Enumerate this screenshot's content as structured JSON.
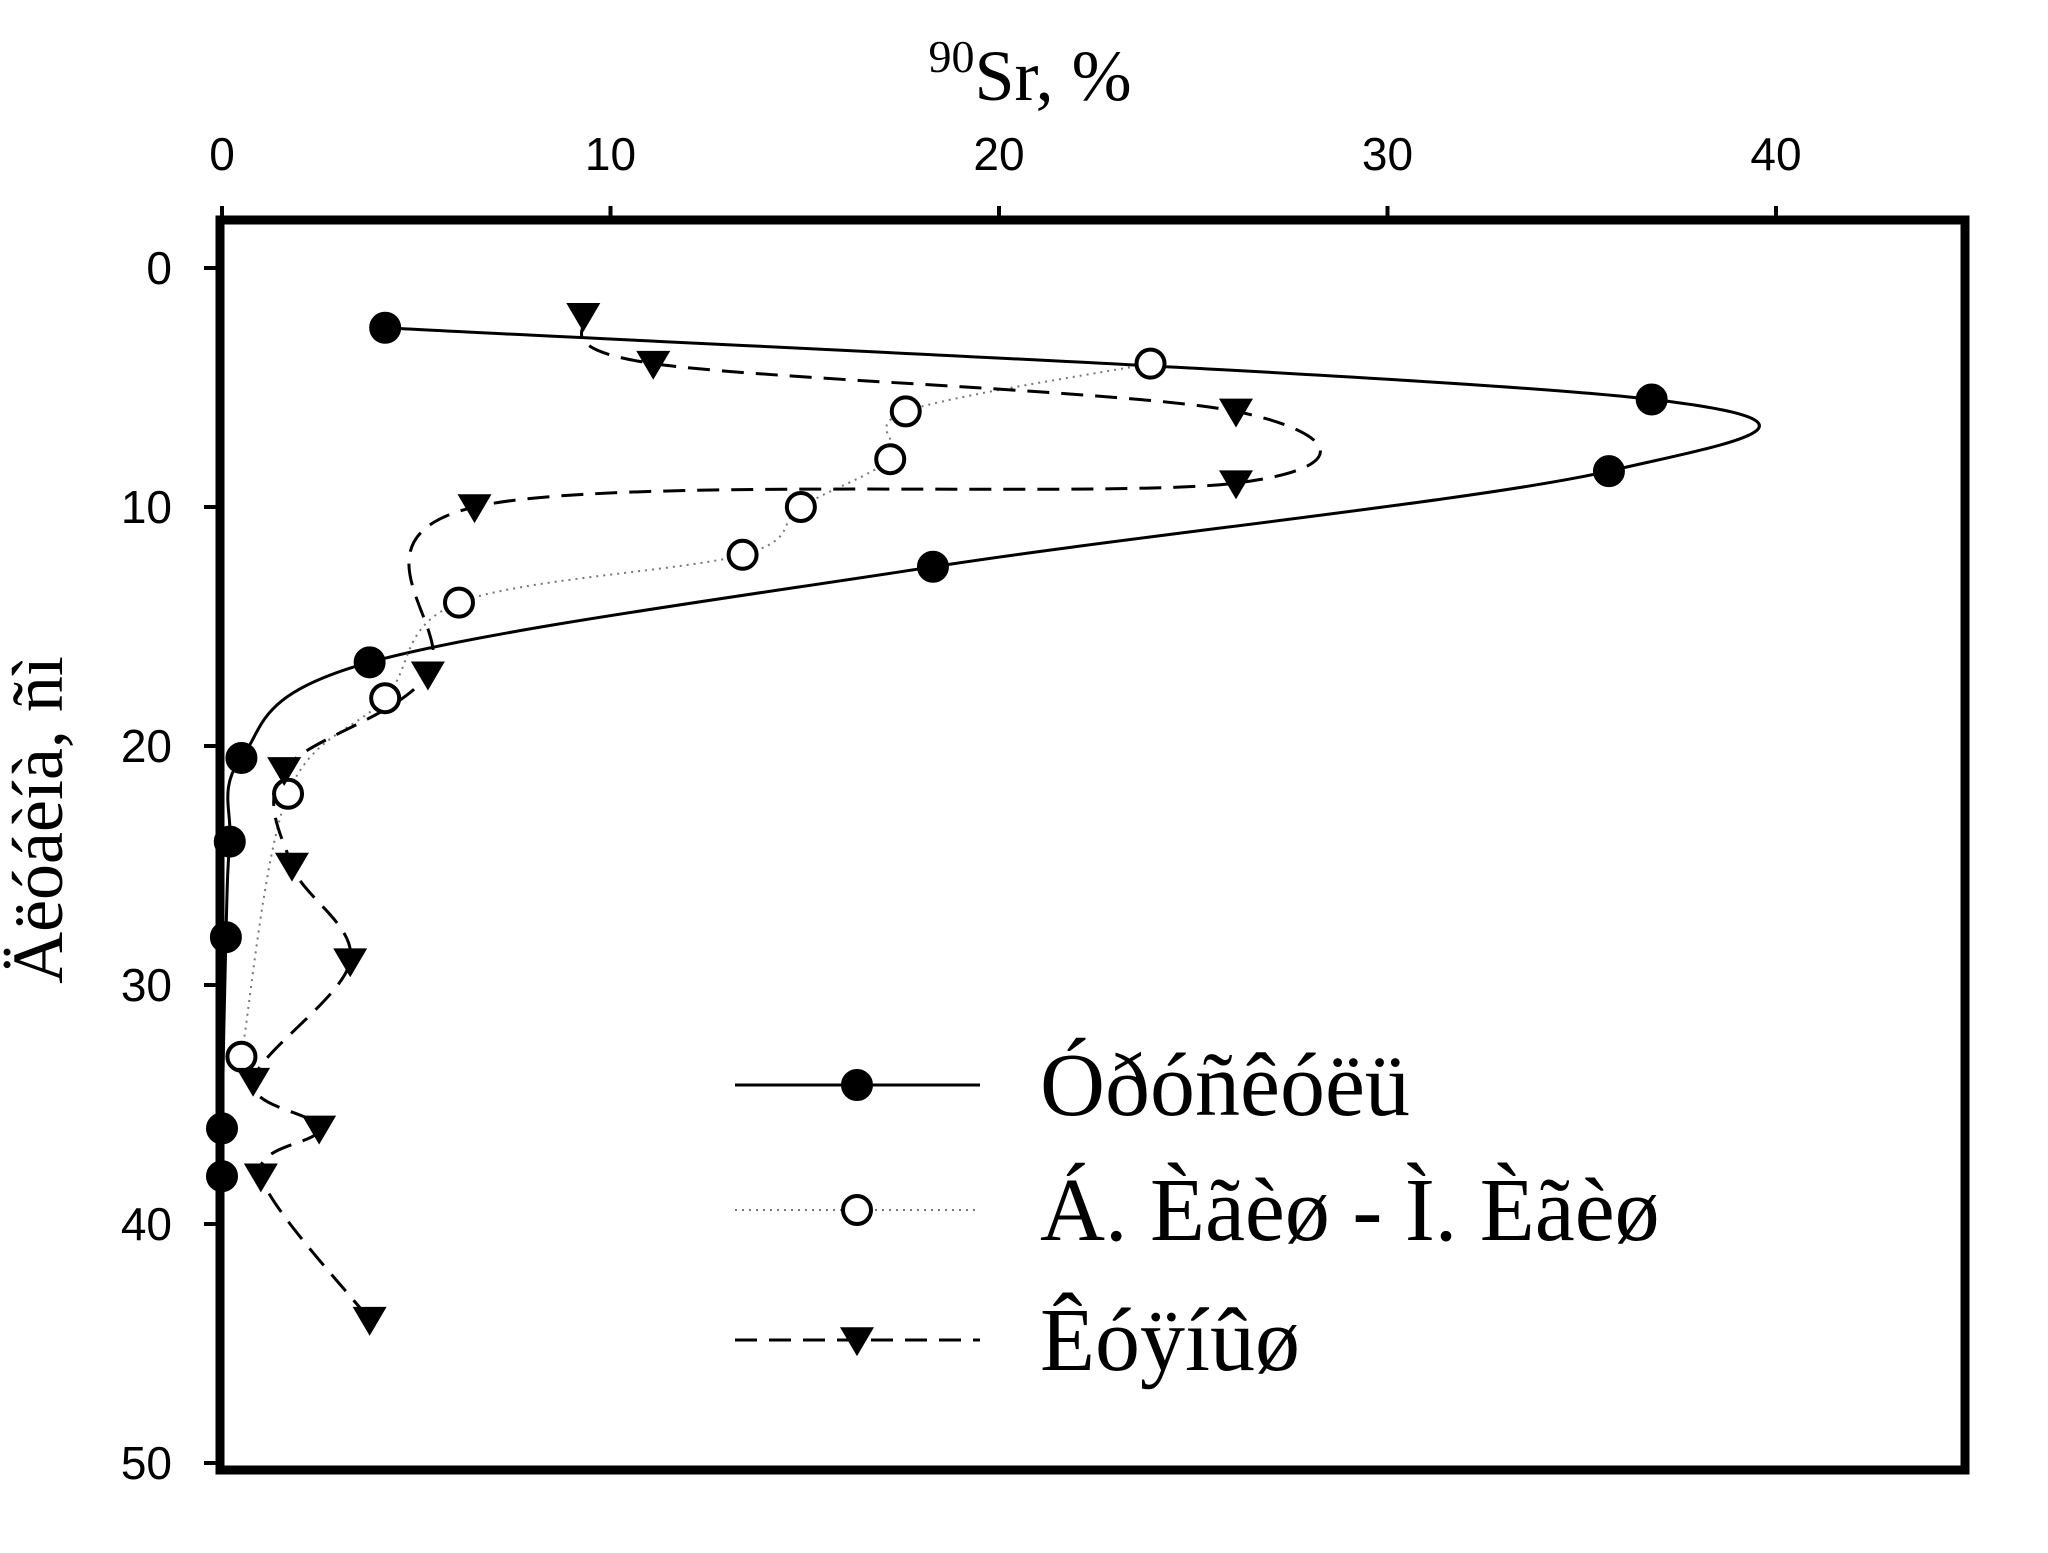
{
  "chart_data": {
    "type": "line",
    "title": "",
    "xlabel_sup": "90",
    "xlabel": "Sr, %",
    "ylabel": "Äëóáèíà, ñì",
    "x_axis_position": "top",
    "y_axis_inverted": true,
    "xlim": [
      0,
      45
    ],
    "ylim": [
      0,
      50
    ],
    "x_ticks": [
      0,
      10,
      20,
      30,
      40
    ],
    "y_ticks": [
      0,
      10,
      20,
      30,
      40,
      50
    ],
    "grid": false,
    "legend_position": "bottom-right",
    "series": [
      {
        "name": "Óðóñêóëü",
        "marker": "filled-circle",
        "line": "solid",
        "points": [
          {
            "x": 4.2,
            "y": 2.5
          },
          {
            "x": 36.8,
            "y": 5.5
          },
          {
            "x": 35.7,
            "y": 8.5
          },
          {
            "x": 18.3,
            "y": 12.5
          },
          {
            "x": 3.8,
            "y": 16.5
          },
          {
            "x": 0.5,
            "y": 20.5
          },
          {
            "x": 0.2,
            "y": 24
          },
          {
            "x": 0.1,
            "y": 28
          },
          {
            "x": 0.0,
            "y": 36
          },
          {
            "x": 0.0,
            "y": 38
          }
        ]
      },
      {
        "name": "Á. Èãèø - Ì. Èãèø",
        "marker": "open-circle",
        "line": "dotted",
        "points": [
          {
            "x": 23.9,
            "y": 4
          },
          {
            "x": 17.6,
            "y": 6
          },
          {
            "x": 17.2,
            "y": 8
          },
          {
            "x": 14.9,
            "y": 10
          },
          {
            "x": 13.4,
            "y": 12
          },
          {
            "x": 6.1,
            "y": 14
          },
          {
            "x": 4.2,
            "y": 18
          },
          {
            "x": 1.7,
            "y": 22
          },
          {
            "x": 0.5,
            "y": 33
          }
        ]
      },
      {
        "name": "Êóÿíûø",
        "marker": "filled-triangle-down",
        "line": "dashed",
        "points": [
          {
            "x": 9.3,
            "y": 2
          },
          {
            "x": 11.1,
            "y": 4
          },
          {
            "x": 26.1,
            "y": 6
          },
          {
            "x": 26.1,
            "y": 9
          },
          {
            "x": 6.5,
            "y": 10
          },
          {
            "x": 5.3,
            "y": 17
          },
          {
            "x": 1.6,
            "y": 21
          },
          {
            "x": 1.8,
            "y": 25
          },
          {
            "x": 3.3,
            "y": 29
          },
          {
            "x": 0.8,
            "y": 34
          },
          {
            "x": 2.5,
            "y": 36
          },
          {
            "x": 1.0,
            "y": 38
          },
          {
            "x": 3.8,
            "y": 44
          }
        ]
      }
    ]
  }
}
